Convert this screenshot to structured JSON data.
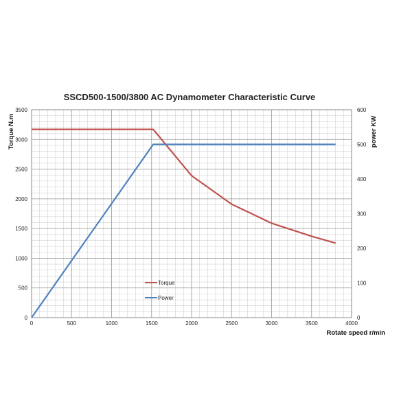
{
  "chart_data": {
    "type": "line",
    "title": "SSCD500-1500/3800 AC Dynamometer Characteristic Curve",
    "xlabel": "Rotate speed r/min",
    "ylabel_left": "Torque N.m",
    "ylabel_right": "power KW",
    "xlim": [
      0,
      4000
    ],
    "ylim_left": [
      0,
      3500
    ],
    "ylim_right": [
      0,
      600
    ],
    "x_ticks": [
      0,
      500,
      1000,
      1500,
      2000,
      2500,
      3000,
      3500,
      4000
    ],
    "y_left_ticks": [
      0,
      500,
      1000,
      1500,
      2000,
      2500,
      3000,
      3500
    ],
    "y_right_ticks": [
      0,
      100,
      200,
      300,
      400,
      500,
      600
    ],
    "grid": true,
    "legend_position": "inside-lower-middle",
    "series": [
      {
        "name": "Torque",
        "axis": "left",
        "color": "#c0504d",
        "x": [
          0,
          1520,
          2000,
          2500,
          3000,
          3500,
          3800
        ],
        "y": [
          3170,
          3170,
          2390,
          1910,
          1590,
          1370,
          1255
        ]
      },
      {
        "name": "Power",
        "axis": "right",
        "color": "#4f81bd",
        "x": [
          0,
          1520,
          2000,
          2500,
          3000,
          3500,
          3800
        ],
        "y": [
          0,
          500,
          500,
          500,
          500,
          500,
          500
        ]
      }
    ]
  }
}
